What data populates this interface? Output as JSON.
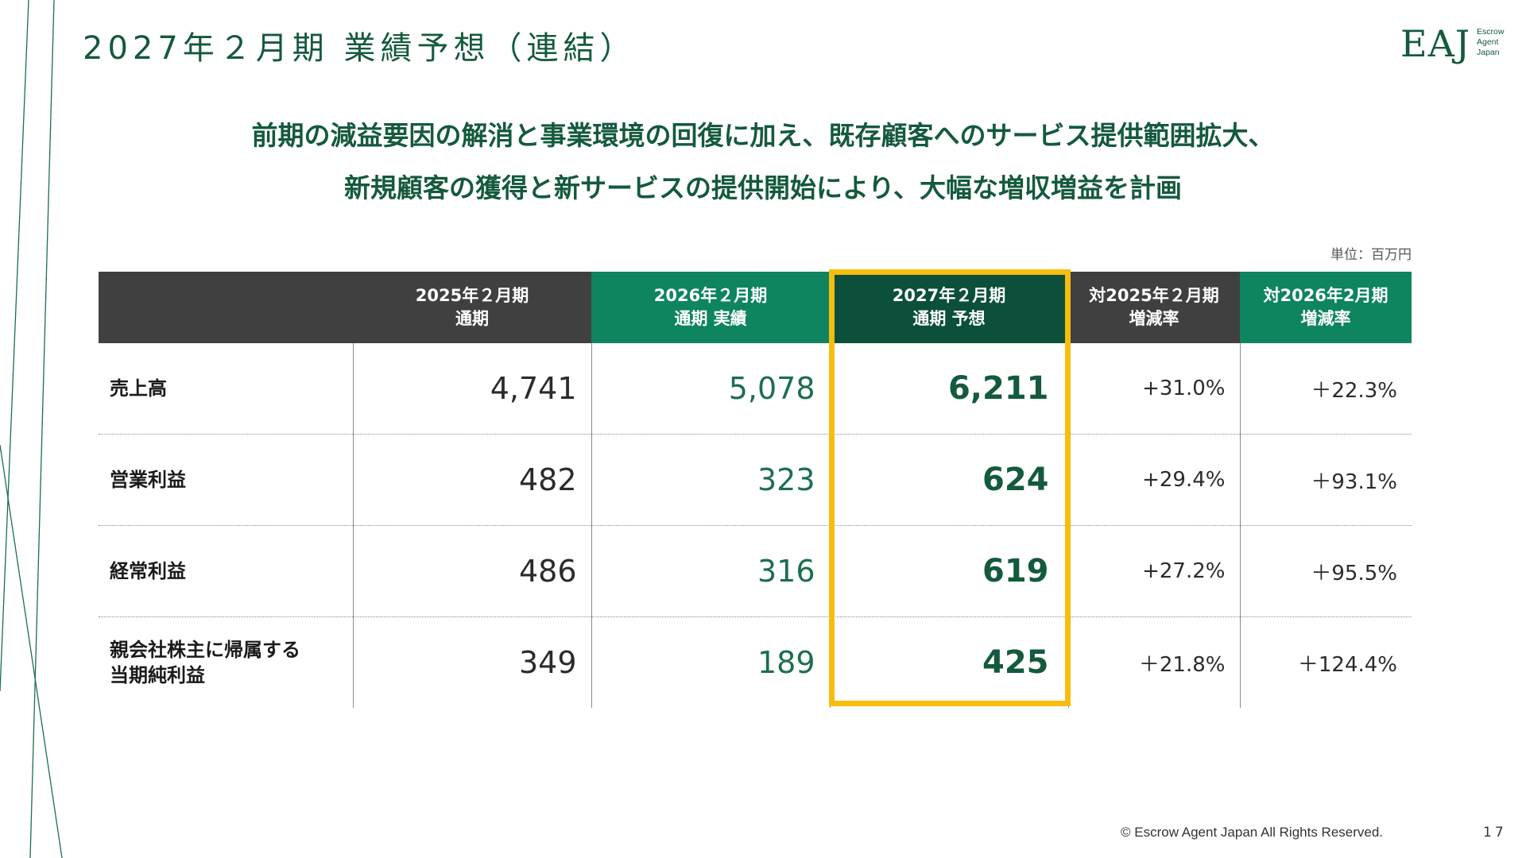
{
  "title": "2027年２月期 業績予想（連結）",
  "logo": {
    "main": "EAJ",
    "sub": [
      "Escrow",
      "Agent",
      "Japan"
    ]
  },
  "headline": {
    "line1": "前期の減益要因の解消と事業環境の回復に加え、既存顧客へのサービス提供範囲拡大、",
    "line2": "新規顧客の獲得と新サービスの提供開始により、大幅な増収増益を計画"
  },
  "unit": "単位：百万円",
  "table": {
    "headers": [
      {
        "line1": "",
        "line2": ""
      },
      {
        "line1": "2025年２月期",
        "line2": "通期"
      },
      {
        "line1": "2026年２月期",
        "line2": "通期 実績"
      },
      {
        "line1": "2027年２月期",
        "line2": "通期 予想"
      },
      {
        "line1": "対2025年２月期",
        "line2": "増減率"
      },
      {
        "line1": "対2026年2月期",
        "line2": "増減率"
      }
    ],
    "rows": [
      {
        "label1": "売上高",
        "label2": "",
        "fy2025": "4,741",
        "fy2026": "5,078",
        "fy2027": "6,211",
        "vs2025": "+31.0%",
        "vs2026": "＋22.3%"
      },
      {
        "label1": "営業利益",
        "label2": "",
        "fy2025": "482",
        "fy2026": "323",
        "fy2027": "624",
        "vs2025": "+29.4%",
        "vs2026": "＋93.1%"
      },
      {
        "label1": "経常利益",
        "label2": "",
        "fy2025": "486",
        "fy2026": "316",
        "fy2027": "619",
        "vs2025": "+27.2%",
        "vs2026": "＋95.5%"
      },
      {
        "label1": "親会社株主に帰属する",
        "label2": "当期純利益",
        "fy2025": "349",
        "fy2026": "189",
        "fy2027": "425",
        "vs2025": "＋21.8%",
        "vs2026": "＋124.4%"
      }
    ]
  },
  "colors": {
    "brand_green": "#145a3c",
    "header_dark": "#404040",
    "header_green": "#0e8460",
    "highlight": "#f6bd0f"
  },
  "footer": "© Escrow Agent Japan All Rights Reserved.",
  "page_number": "17"
}
